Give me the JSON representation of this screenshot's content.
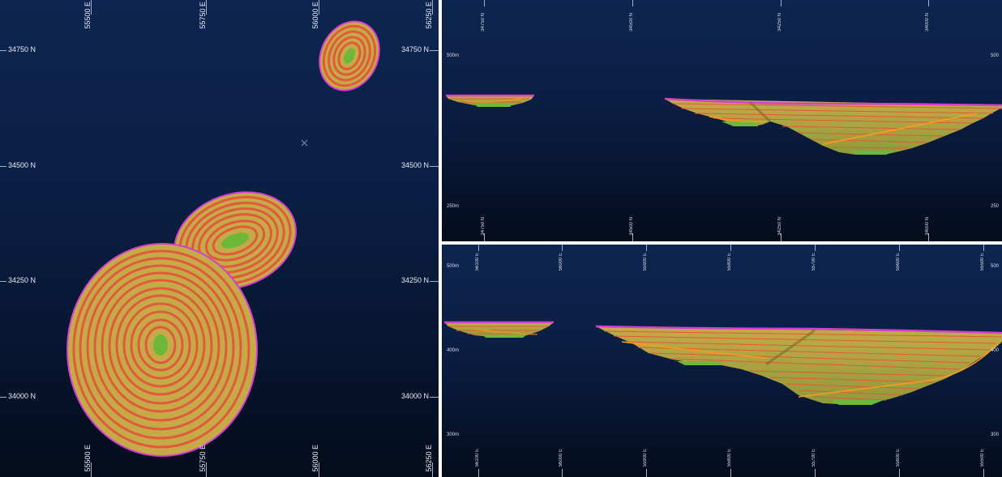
{
  "plan_view": {
    "easting_labels_top": [
      "55500 E",
      "55750 E",
      "56000 E",
      "56250 E"
    ],
    "easting_labels_bottom": [
      "55500 E",
      "55750 E",
      "56000 E",
      "56250 E"
    ],
    "northing_labels_left": [
      "34750 N",
      "34500 N",
      "34250 N",
      "34000 N"
    ],
    "northing_labels_right": [
      "34750 N",
      "34500 N",
      "34250 N",
      "34000 N"
    ]
  },
  "section_top": {
    "top_labels": [
      "34750 N",
      "34500 N",
      "34250 N",
      "34000 N"
    ],
    "bottom_labels": [
      "34750 N",
      "34500 N",
      "34250 N",
      "34000 N"
    ],
    "elevation_left": [
      "500m",
      "250m"
    ],
    "elevation_right": [
      "500",
      "250"
    ]
  },
  "section_bottom": {
    "top_labels": [
      "56100 E",
      "56000 E",
      "55900 E",
      "55800 E",
      "55700 E",
      "55600 E",
      "55500 E"
    ],
    "bottom_labels": [
      "56100 E",
      "56000 E",
      "55900 E",
      "55800 E",
      "55700 E",
      "55600 E",
      "55500 E"
    ],
    "elevation_left": [
      "500m",
      "400m",
      "300m"
    ],
    "elevation_right": [
      "500",
      "400",
      "300"
    ]
  },
  "colors": {
    "background_top": "#0d2550",
    "background_bottom": "#040c1c",
    "pit_bench": "#c5aa47",
    "pit_berm": "#e05a3c",
    "pit_floor": "#6db83a",
    "pit_crest": "#d43fd0",
    "ramp": "#ff9a1a"
  }
}
